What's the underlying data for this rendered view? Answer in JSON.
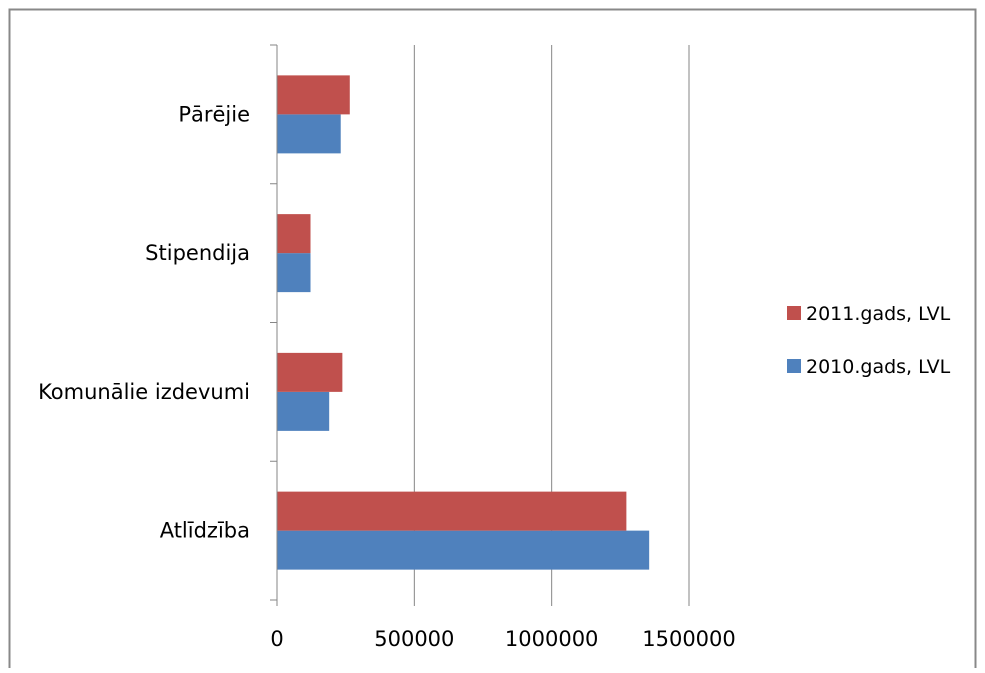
{
  "chart_data": {
    "type": "bar",
    "orientation": "horizontal",
    "categories": [
      "Atlīdzība",
      "Komunālie izdevumi",
      "Stipendija",
      "Pārējie"
    ],
    "series": [
      {
        "name": "2010.gads, LVL",
        "color": "#4f81bd",
        "values": [
          1355000,
          190000,
          122000,
          232000
        ]
      },
      {
        "name": "2011.gads, LVL",
        "color": "#c0504d",
        "values": [
          1272000,
          238000,
          122000,
          265000
        ]
      }
    ],
    "x_ticks": [
      "0",
      "500000",
      "1000000",
      "1500000"
    ],
    "xlim": [
      0,
      1500000
    ],
    "grid": "vertical major gridlines",
    "legend_position": "right",
    "legend_order": [
      "2011.gads, LVL",
      "2010.gads, LVL"
    ]
  }
}
